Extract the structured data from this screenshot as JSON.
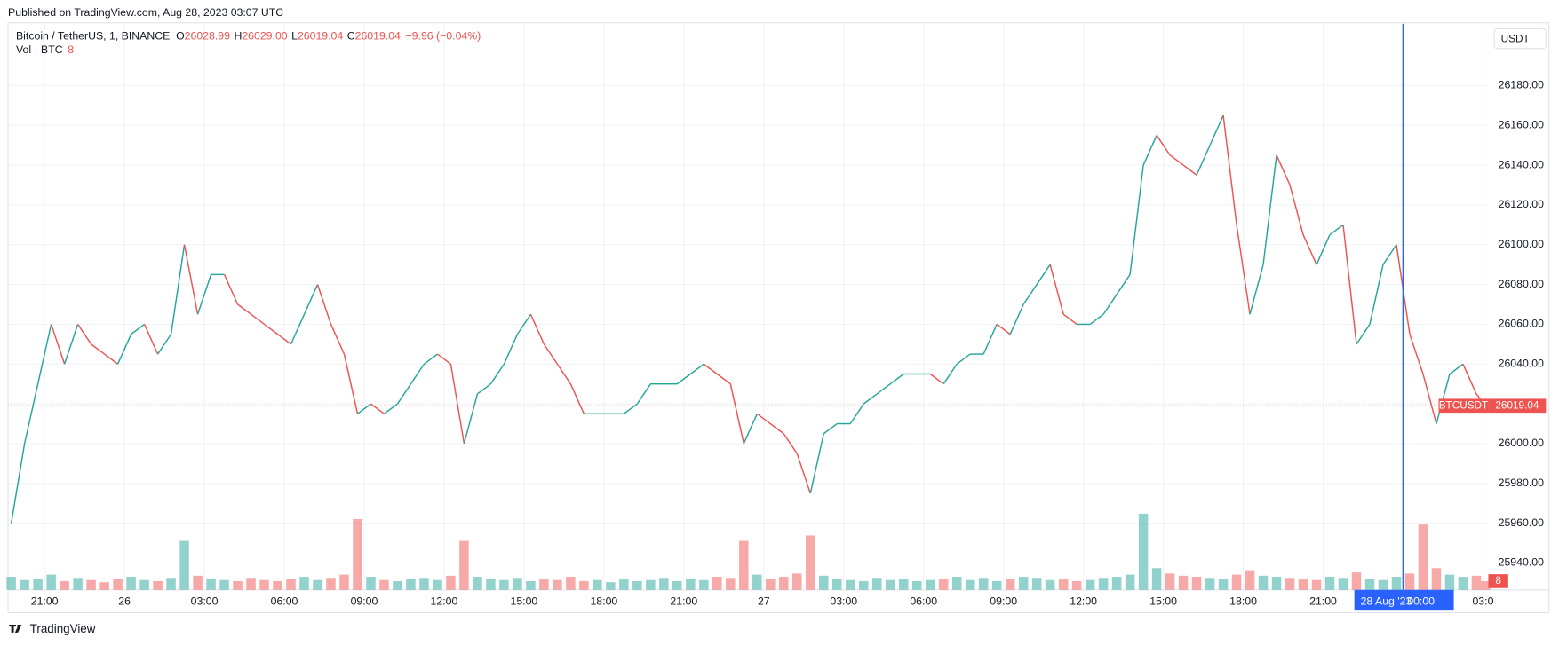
{
  "header": {
    "published": "Published on TradingView.com, Aug 28, 2023 03:07 UTC"
  },
  "footer": {
    "brand": "TradingView"
  },
  "chart_data": {
    "type": "price",
    "legend": {
      "symbol": "Bitcoin / TetherUS, 1, BINANCE",
      "fields": [
        {
          "label": "O",
          "value": "26028.99"
        },
        {
          "label": "H",
          "value": "26029.00"
        },
        {
          "label": "L",
          "value": "26019.04"
        },
        {
          "label": "C",
          "value": "26019.04"
        }
      ],
      "change": "−9.96 (−0.04%)"
    },
    "currency": "USDT",
    "up_color": "#26a69a",
    "down_color": "#ef5350",
    "crosshair": {
      "x": 48,
      "date": "28 Aug '23",
      "color": "#2962ff"
    },
    "grid": true,
    "x": [
      -4.25,
      -3.75,
      -3.25,
      -2.75,
      -2.25,
      -1.75,
      -1.25,
      -0.75,
      -0.25,
      0.25,
      0.75,
      1.25,
      1.75,
      2.25,
      2.75,
      3.25,
      3.75,
      4.25,
      4.75,
      5.25,
      5.75,
      6.25,
      6.75,
      7.25,
      7.75,
      8.25,
      8.75,
      9.25,
      9.75,
      10.25,
      10.75,
      11.25,
      11.75,
      12.25,
      12.75,
      13.25,
      13.75,
      14.25,
      14.75,
      15.25,
      15.75,
      16.25,
      16.75,
      17.25,
      17.75,
      18.25,
      18.75,
      19.25,
      19.75,
      20.25,
      20.75,
      21.25,
      21.75,
      22.25,
      22.75,
      23.25,
      23.75,
      24.25,
      24.75,
      25.25,
      25.75,
      26.25,
      26.75,
      27.25,
      27.75,
      28.25,
      28.75,
      29.25,
      29.75,
      30.25,
      30.75,
      31.25,
      31.75,
      32.25,
      32.75,
      33.25,
      33.75,
      34.25,
      34.75,
      35.25,
      35.75,
      36.25,
      36.75,
      37.25,
      37.75,
      38.25,
      38.75,
      39.25,
      39.75,
      40.25,
      40.75,
      41.25,
      41.75,
      42.25,
      42.75,
      43.25,
      43.75,
      44.25,
      44.75,
      45.25,
      45.75,
      46.25,
      46.75,
      47.25,
      47.75,
      48.25,
      48.75,
      49.25,
      49.75,
      50.25,
      50.75,
      51.1
    ],
    "series": [
      {
        "name": "BTCUSDT",
        "values": [
          25960,
          26000,
          26030,
          26060,
          26040,
          26060,
          26050,
          26045,
          26040,
          26055,
          26060,
          26045,
          26055,
          26100,
          26065,
          26085,
          26085,
          26070,
          26065,
          26060,
          26055,
          26050,
          26065,
          26080,
          26060,
          26045,
          26015,
          26020,
          26015,
          26020,
          26030,
          26040,
          26045,
          26040,
          26000,
          26025,
          26030,
          26040,
          26055,
          26065,
          26050,
          26040,
          26030,
          26015,
          26015,
          26015,
          26015,
          26020,
          26030,
          26030,
          26030,
          26035,
          26040,
          26035,
          26030,
          26000,
          26015,
          26010,
          26005,
          25995,
          25975,
          26005,
          26010,
          26010,
          26020,
          26025,
          26030,
          26035,
          26035,
          26035,
          26030,
          26040,
          26045,
          26045,
          26060,
          26055,
          26070,
          26080,
          26090,
          26065,
          26060,
          26060,
          26065,
          26075,
          26085,
          26140,
          26155,
          26145,
          26140,
          26135,
          26150,
          26165,
          26110,
          26065,
          26090,
          26145,
          26130,
          26105,
          26090,
          26105,
          26110,
          26050,
          26060,
          26090,
          26100,
          26055,
          26035,
          26010,
          26035,
          26040,
          26025,
          26019.04
        ]
      },
      {
        "name": "Vol · BTC",
        "axis": "y2",
        "values": [
          12,
          9,
          10,
          14,
          8,
          11,
          9,
          7,
          10,
          12,
          9,
          8,
          11,
          45,
          13,
          10,
          9,
          8,
          11,
          9,
          8,
          10,
          12,
          9,
          11,
          14,
          65,
          12,
          9,
          8,
          10,
          11,
          9,
          13,
          45,
          12,
          10,
          9,
          11,
          8,
          10,
          9,
          12,
          8,
          9,
          7,
          10,
          8,
          9,
          11,
          8,
          10,
          9,
          12,
          11,
          45,
          14,
          10,
          12,
          15,
          50,
          13,
          10,
          9,
          8,
          11,
          9,
          10,
          8,
          9,
          10,
          12,
          9,
          11,
          8,
          10,
          12,
          11,
          9,
          10,
          8,
          9,
          11,
          12,
          14,
          70,
          20,
          15,
          13,
          12,
          11,
          10,
          14,
          18,
          13,
          12,
          11,
          10,
          9,
          12,
          11,
          16,
          10,
          9,
          12,
          15,
          60,
          20,
          14,
          12,
          13,
          8
        ]
      }
    ],
    "xlim": [
      -4.37,
      51.2
    ],
    "xticks": [
      {
        "value": -3,
        "label": "21:00"
      },
      {
        "value": 0,
        "label": "26"
      },
      {
        "value": 3,
        "label": "03:00"
      },
      {
        "value": 6,
        "label": "06:00"
      },
      {
        "value": 9,
        "label": "09:00"
      },
      {
        "value": 12,
        "label": "12:00"
      },
      {
        "value": 15,
        "label": "15:00"
      },
      {
        "value": 18,
        "label": "18:00"
      },
      {
        "value": 21,
        "label": "21:00"
      },
      {
        "value": 24,
        "label": "27"
      },
      {
        "value": 27,
        "label": "03:00"
      },
      {
        "value": 30,
        "label": "06:00"
      },
      {
        "value": 33,
        "label": "09:00"
      },
      {
        "value": 36,
        "label": "12:00"
      },
      {
        "value": 39,
        "label": "15:00"
      },
      {
        "value": 42,
        "label": "18:00"
      },
      {
        "value": 45,
        "label": "21:00"
      },
      {
        "value": 48,
        "label": "00:00"
      },
      {
        "value": 51,
        "label": "03:0"
      }
    ],
    "ylim": [
      25926.5,
      26211
    ],
    "yticks": [
      {
        "value": 25940,
        "label": "25940.00"
      },
      {
        "value": 25960,
        "label": "25960.00"
      },
      {
        "value": 25980,
        "label": "25980.00"
      },
      {
        "value": 26000,
        "label": "26000.00"
      },
      {
        "value": 26020,
        "label": "26020.00"
      },
      {
        "value": 26040,
        "label": "26040.00"
      },
      {
        "value": 26060,
        "label": "26060.00"
      },
      {
        "value": 26080,
        "label": "26080.00"
      },
      {
        "value": 26100,
        "label": "26100.00"
      },
      {
        "value": 26120,
        "label": "26120.00"
      },
      {
        "value": 26140,
        "label": "26140.00"
      },
      {
        "value": 26160,
        "label": "26160.00"
      },
      {
        "value": 26180,
        "label": "26180.00"
      }
    ],
    "y2lim": [
      0,
      520
    ]
  }
}
